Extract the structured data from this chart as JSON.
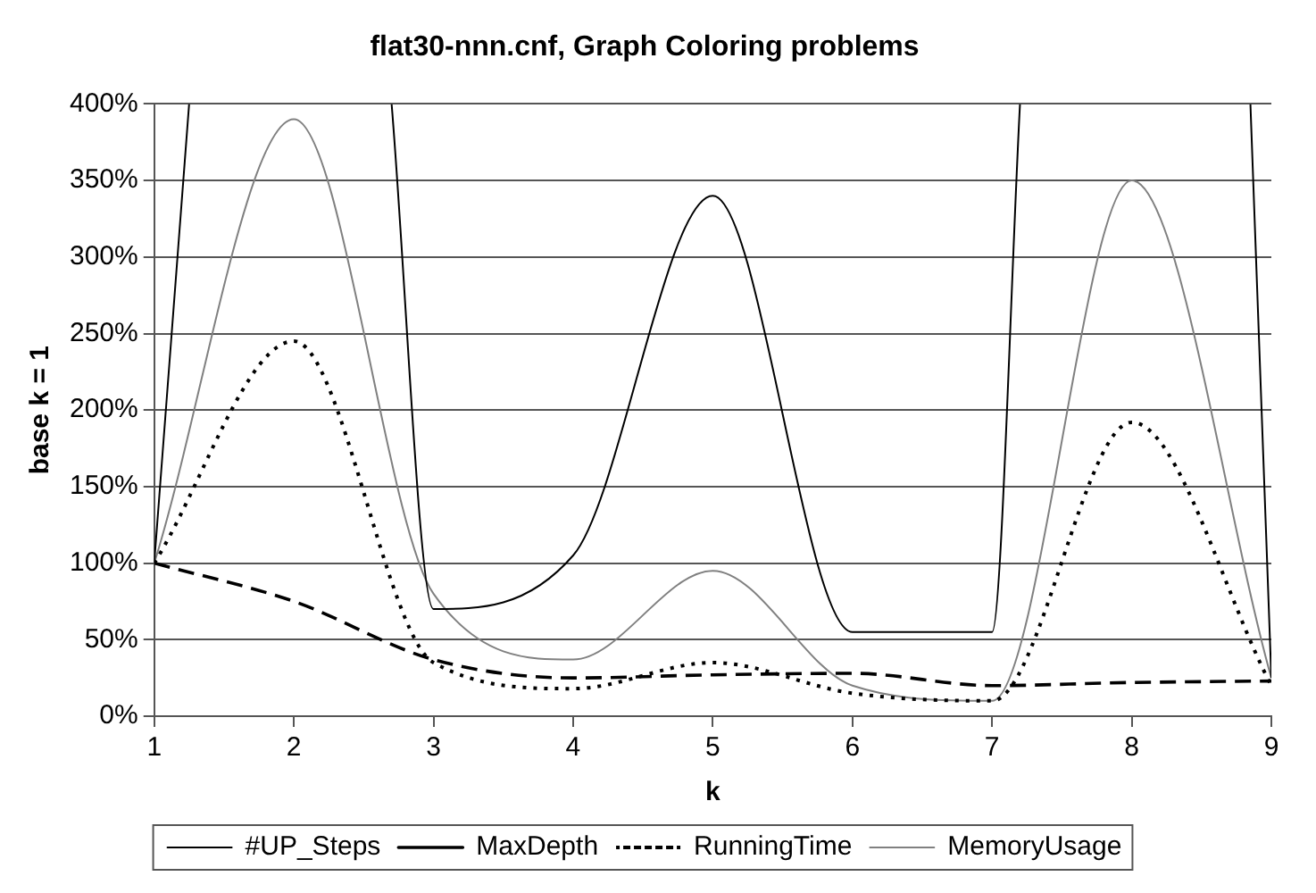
{
  "chart_data": {
    "type": "line",
    "title": "flat30-nnn.cnf, Graph Coloring problems",
    "xlabel": "k",
    "ylabel": "base k = 1",
    "xlim": [
      1,
      9
    ],
    "xticks": [
      1,
      2,
      3,
      4,
      5,
      6,
      7,
      8,
      9
    ],
    "ylim": [
      0,
      400
    ],
    "yticks": [
      {
        "value": 0,
        "label": "0%"
      },
      {
        "value": 50,
        "label": "50%"
      },
      {
        "value": 100,
        "label": "100%"
      },
      {
        "value": 150,
        "label": "150%"
      },
      {
        "value": 200,
        "label": "200%"
      },
      {
        "value": 250,
        "label": "250%"
      },
      {
        "value": 300,
        "label": "300%"
      },
      {
        "value": 350,
        "label": "350%"
      },
      {
        "value": 400,
        "label": "400%"
      }
    ],
    "grid": "y",
    "legend": "bottom",
    "marker": "none",
    "series": [
      {
        "name": "#UP_Steps",
        "color": "#000000",
        "line_style": "solid",
        "x": [
          1,
          1.25,
          2,
          2.7,
          3,
          4,
          5,
          6,
          7,
          7.2,
          8,
          8.85,
          9
        ],
        "values": [
          100,
          400,
          null,
          400,
          70,
          105,
          340,
          55,
          55,
          400,
          null,
          400,
          25
        ]
      },
      {
        "name": "MaxDepth",
        "color": "#000000",
        "line_style": "dashed",
        "x": [
          1,
          2,
          3,
          4,
          5,
          6,
          7,
          8,
          9
        ],
        "values": [
          100,
          75,
          37,
          25,
          27,
          28,
          20,
          22,
          23
        ]
      },
      {
        "name": "RunningTime",
        "color": "#000000",
        "line_style": "dotted",
        "x": [
          1,
          2,
          3,
          4,
          5,
          6,
          7,
          8,
          9
        ],
        "values": [
          100,
          245,
          35,
          18,
          35,
          15,
          10,
          192,
          20
        ]
      },
      {
        "name": "MemoryUsage",
        "color": "#808080",
        "line_style": "solid",
        "x": [
          1,
          2,
          3,
          4,
          5,
          6,
          7,
          8,
          9
        ],
        "values": [
          100,
          390,
          80,
          37,
          95,
          20,
          10,
          350,
          25
        ]
      }
    ]
  }
}
